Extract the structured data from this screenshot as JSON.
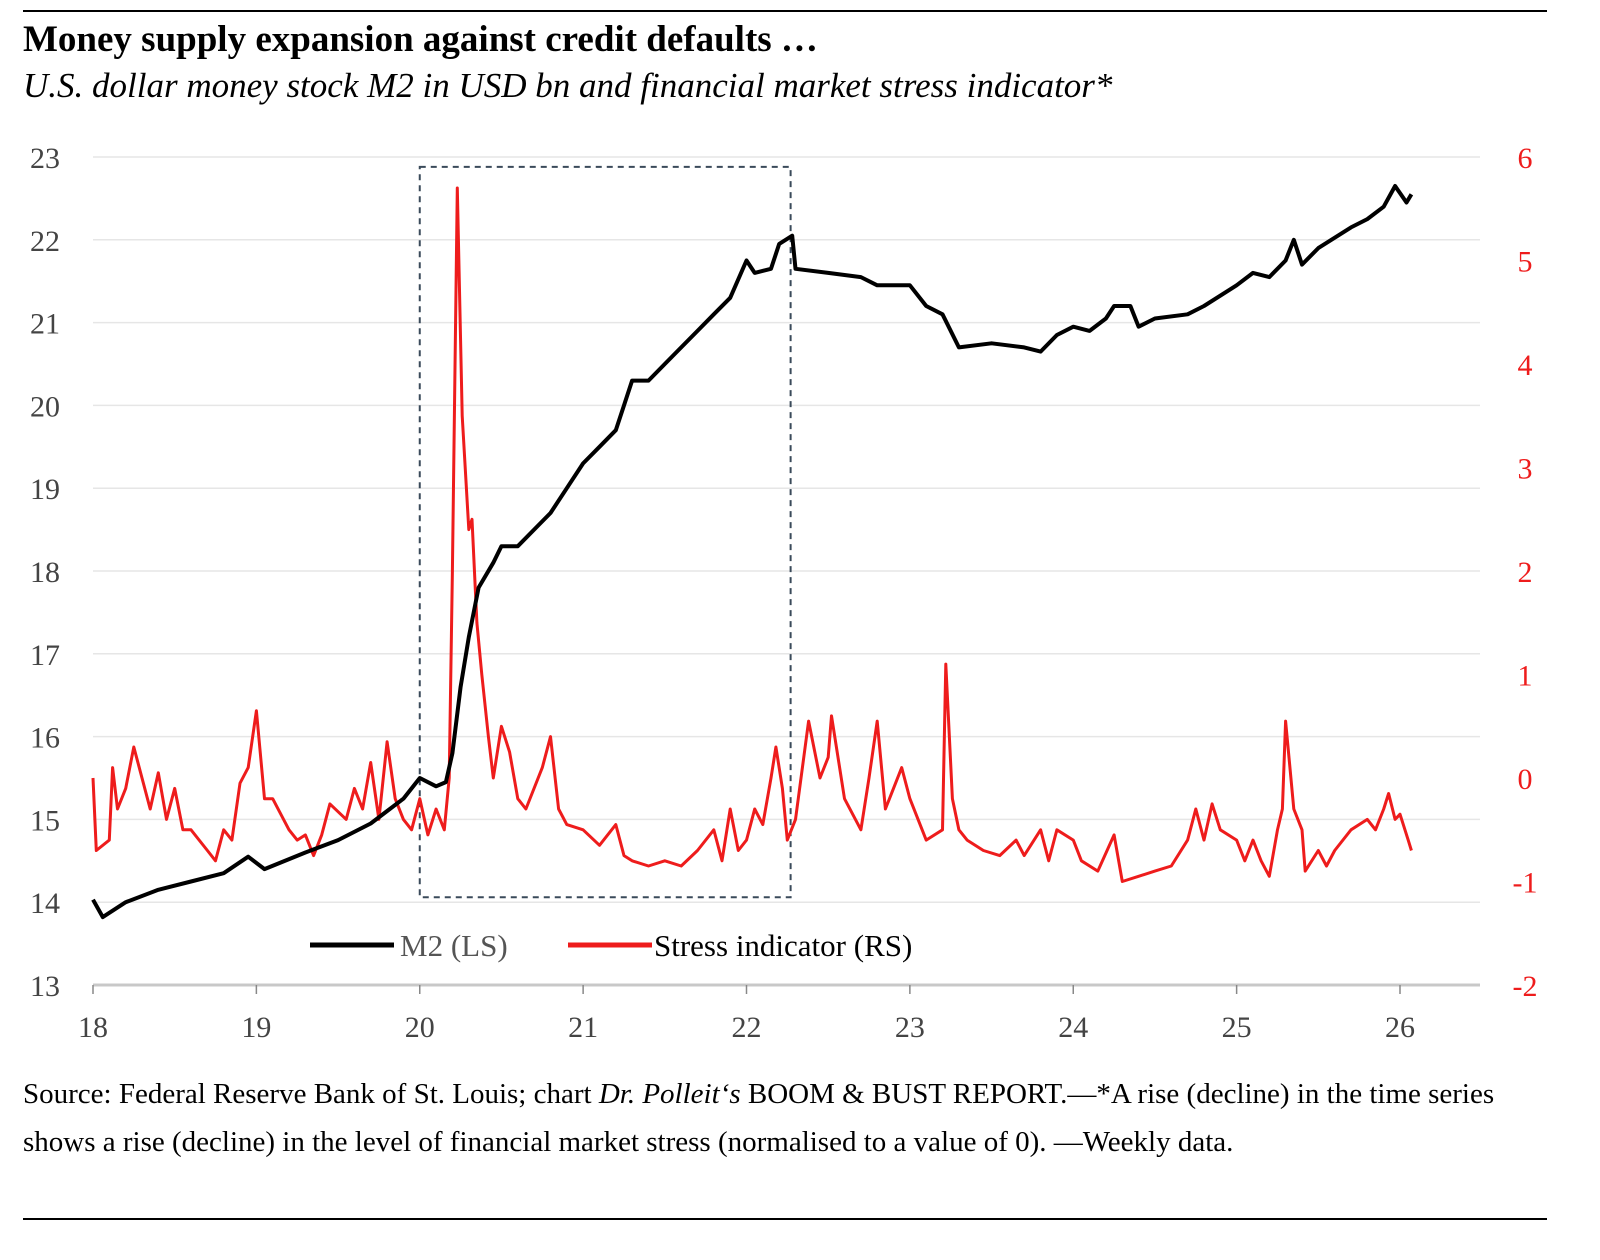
{
  "chart_data": {
    "type": "line",
    "title": "Money supply expansion against credit defaults …",
    "subtitle": "U.S. dollar money stock M2 in USD bn and financial market stress indicator*",
    "x_ticks": [
      "18",
      "19",
      "20",
      "21",
      "22",
      "23",
      "24",
      "25",
      "26"
    ],
    "xlim": [
      18,
      26.5
    ],
    "left_axis": {
      "ylim": [
        13,
        23
      ],
      "ticks": [
        "13",
        "14",
        "15",
        "16",
        "17",
        "18",
        "19",
        "20",
        "21",
        "22",
        "23"
      ],
      "color": "#444444"
    },
    "right_axis": {
      "ylim": [
        -2,
        6
      ],
      "ticks": [
        "-2",
        "-1",
        "0",
        "1",
        "2",
        "3",
        "4",
        "5",
        "6"
      ],
      "color": "#ee1c1c"
    },
    "grid": true,
    "legend": {
      "placement": "bottom-center",
      "items": [
        "M2 (LS)",
        "Stress indicator (RS)"
      ]
    },
    "highlight_box": {
      "x": [
        20.0,
        22.27
      ],
      "y_left": [
        14.06,
        22.88
      ]
    },
    "series": [
      {
        "name": "M2 (LS)",
        "axis": "left",
        "color": "#000000",
        "x": [
          18.0,
          18.06,
          18.2,
          18.4,
          18.6,
          18.8,
          18.95,
          19.05,
          19.3,
          19.5,
          19.7,
          19.9,
          20.0,
          20.1,
          20.16,
          20.2,
          20.25,
          20.3,
          20.36,
          20.45,
          20.5,
          20.6,
          20.7,
          20.8,
          20.9,
          21.0,
          21.1,
          21.2,
          21.25,
          21.3,
          21.4,
          21.5,
          21.6,
          21.7,
          21.8,
          21.9,
          22.0,
          22.05,
          22.15,
          22.2,
          22.28,
          22.3,
          22.5,
          22.7,
          22.8,
          23.0,
          23.1,
          23.2,
          23.3,
          23.5,
          23.7,
          23.8,
          23.9,
          24.0,
          24.1,
          24.2,
          24.25,
          24.35,
          24.4,
          24.5,
          24.7,
          24.8,
          25.0,
          25.1,
          25.2,
          25.3,
          25.35,
          25.4,
          25.5,
          25.7,
          25.8,
          25.9,
          25.97,
          26.04,
          26.07
        ],
        "y": [
          14.03,
          13.82,
          14.0,
          14.15,
          14.25,
          14.35,
          14.55,
          14.4,
          14.6,
          14.75,
          14.95,
          15.25,
          15.5,
          15.4,
          15.45,
          15.8,
          16.6,
          17.2,
          17.8,
          18.1,
          18.3,
          18.3,
          18.5,
          18.7,
          19.0,
          19.3,
          19.5,
          19.7,
          20.0,
          20.3,
          20.3,
          20.5,
          20.7,
          20.9,
          21.1,
          21.3,
          21.75,
          21.6,
          21.65,
          21.95,
          22.05,
          21.65,
          21.6,
          21.55,
          21.45,
          21.45,
          21.2,
          21.1,
          20.7,
          20.75,
          20.7,
          20.65,
          20.85,
          20.95,
          20.9,
          21.05,
          21.2,
          21.2,
          20.95,
          21.05,
          21.1,
          21.2,
          21.45,
          21.6,
          21.55,
          21.75,
          22.0,
          21.7,
          21.9,
          22.15,
          22.25,
          22.4,
          22.65,
          22.45,
          22.55
        ]
      },
      {
        "name": "Stress indicator (RS)",
        "axis": "right",
        "color": "#ee1c1c",
        "x": [
          18.0,
          18.02,
          18.1,
          18.12,
          18.15,
          18.2,
          18.25,
          18.3,
          18.35,
          18.4,
          18.45,
          18.5,
          18.55,
          18.6,
          18.7,
          18.75,
          18.8,
          18.85,
          18.9,
          18.95,
          19.0,
          19.05,
          19.1,
          19.2,
          19.25,
          19.3,
          19.35,
          19.4,
          19.45,
          19.55,
          19.6,
          19.65,
          19.7,
          19.75,
          19.8,
          19.85,
          19.9,
          19.95,
          20.0,
          20.05,
          20.1,
          20.15,
          20.18,
          20.2,
          20.23,
          20.26,
          20.3,
          20.32,
          20.35,
          20.38,
          20.42,
          20.45,
          20.5,
          20.55,
          20.6,
          20.65,
          20.75,
          20.8,
          20.85,
          20.9,
          21.0,
          21.1,
          21.2,
          21.25,
          21.3,
          21.4,
          21.5,
          21.6,
          21.7,
          21.8,
          21.85,
          21.9,
          21.95,
          22.0,
          22.05,
          22.1,
          22.15,
          22.18,
          22.22,
          22.25,
          22.3,
          22.38,
          22.45,
          22.5,
          22.52,
          22.6,
          22.7,
          22.75,
          22.8,
          22.85,
          22.95,
          23.0,
          23.1,
          23.2,
          23.22,
          23.26,
          23.3,
          23.35,
          23.45,
          23.55,
          23.65,
          23.7,
          23.8,
          23.85,
          23.9,
          24.0,
          24.05,
          24.15,
          24.25,
          24.3,
          24.4,
          24.5,
          24.6,
          24.7,
          24.75,
          24.8,
          24.85,
          24.9,
          25.0,
          25.05,
          25.1,
          25.15,
          25.2,
          25.25,
          25.28,
          25.3,
          25.35,
          25.4,
          25.42,
          25.5,
          25.55,
          25.6,
          25.7,
          25.8,
          25.85,
          25.9,
          25.93,
          25.97,
          26.0,
          26.05,
          26.07
        ],
        "y": [
          0.0,
          -0.7,
          -0.6,
          0.1,
          -0.3,
          -0.1,
          0.3,
          0.0,
          -0.3,
          0.05,
          -0.4,
          -0.1,
          -0.5,
          -0.5,
          -0.7,
          -0.8,
          -0.5,
          -0.6,
          -0.05,
          0.1,
          0.65,
          -0.2,
          -0.2,
          -0.5,
          -0.6,
          -0.55,
          -0.75,
          -0.55,
          -0.25,
          -0.4,
          -0.1,
          -0.3,
          0.15,
          -0.4,
          0.35,
          -0.2,
          -0.4,
          -0.5,
          -0.2,
          -0.55,
          -0.3,
          -0.5,
          0.0,
          2.0,
          5.7,
          3.5,
          2.4,
          2.5,
          1.5,
          1.0,
          0.4,
          0.0,
          0.5,
          0.25,
          -0.2,
          -0.3,
          0.1,
          0.4,
          -0.3,
          -0.45,
          -0.5,
          -0.65,
          -0.45,
          -0.75,
          -0.8,
          -0.85,
          -0.8,
          -0.85,
          -0.7,
          -0.5,
          -0.8,
          -0.3,
          -0.7,
          -0.6,
          -0.3,
          -0.45,
          0.0,
          0.3,
          -0.1,
          -0.6,
          -0.4,
          0.55,
          0.0,
          0.2,
          0.6,
          -0.2,
          -0.5,
          0.0,
          0.55,
          -0.3,
          0.1,
          -0.2,
          -0.6,
          -0.5,
          1.1,
          -0.2,
          -0.5,
          -0.6,
          -0.7,
          -0.75,
          -0.6,
          -0.75,
          -0.5,
          -0.8,
          -0.5,
          -0.6,
          -0.8,
          -0.9,
          -0.55,
          -1.0,
          -0.95,
          -0.9,
          -0.85,
          -0.6,
          -0.3,
          -0.6,
          -0.25,
          -0.5,
          -0.6,
          -0.8,
          -0.6,
          -0.8,
          -0.95,
          -0.5,
          -0.3,
          0.55,
          -0.3,
          -0.5,
          -0.9,
          -0.7,
          -0.85,
          -0.7,
          -0.5,
          -0.4,
          -0.5,
          -0.3,
          -0.15,
          -0.4,
          -0.35,
          -0.6,
          -0.7
        ]
      }
    ]
  },
  "footer": {
    "source_prefix": "Source: Federal Reserve Bank of St. Louis; chart ",
    "source_italic": "Dr. Polleit‘s",
    "source_suffix": " BOOM & BUST REPORT.—*A rise (decline) in the time series shows a rise (decline) in the level of financial market stress (normalised to a value of 0). —Weekly data."
  }
}
